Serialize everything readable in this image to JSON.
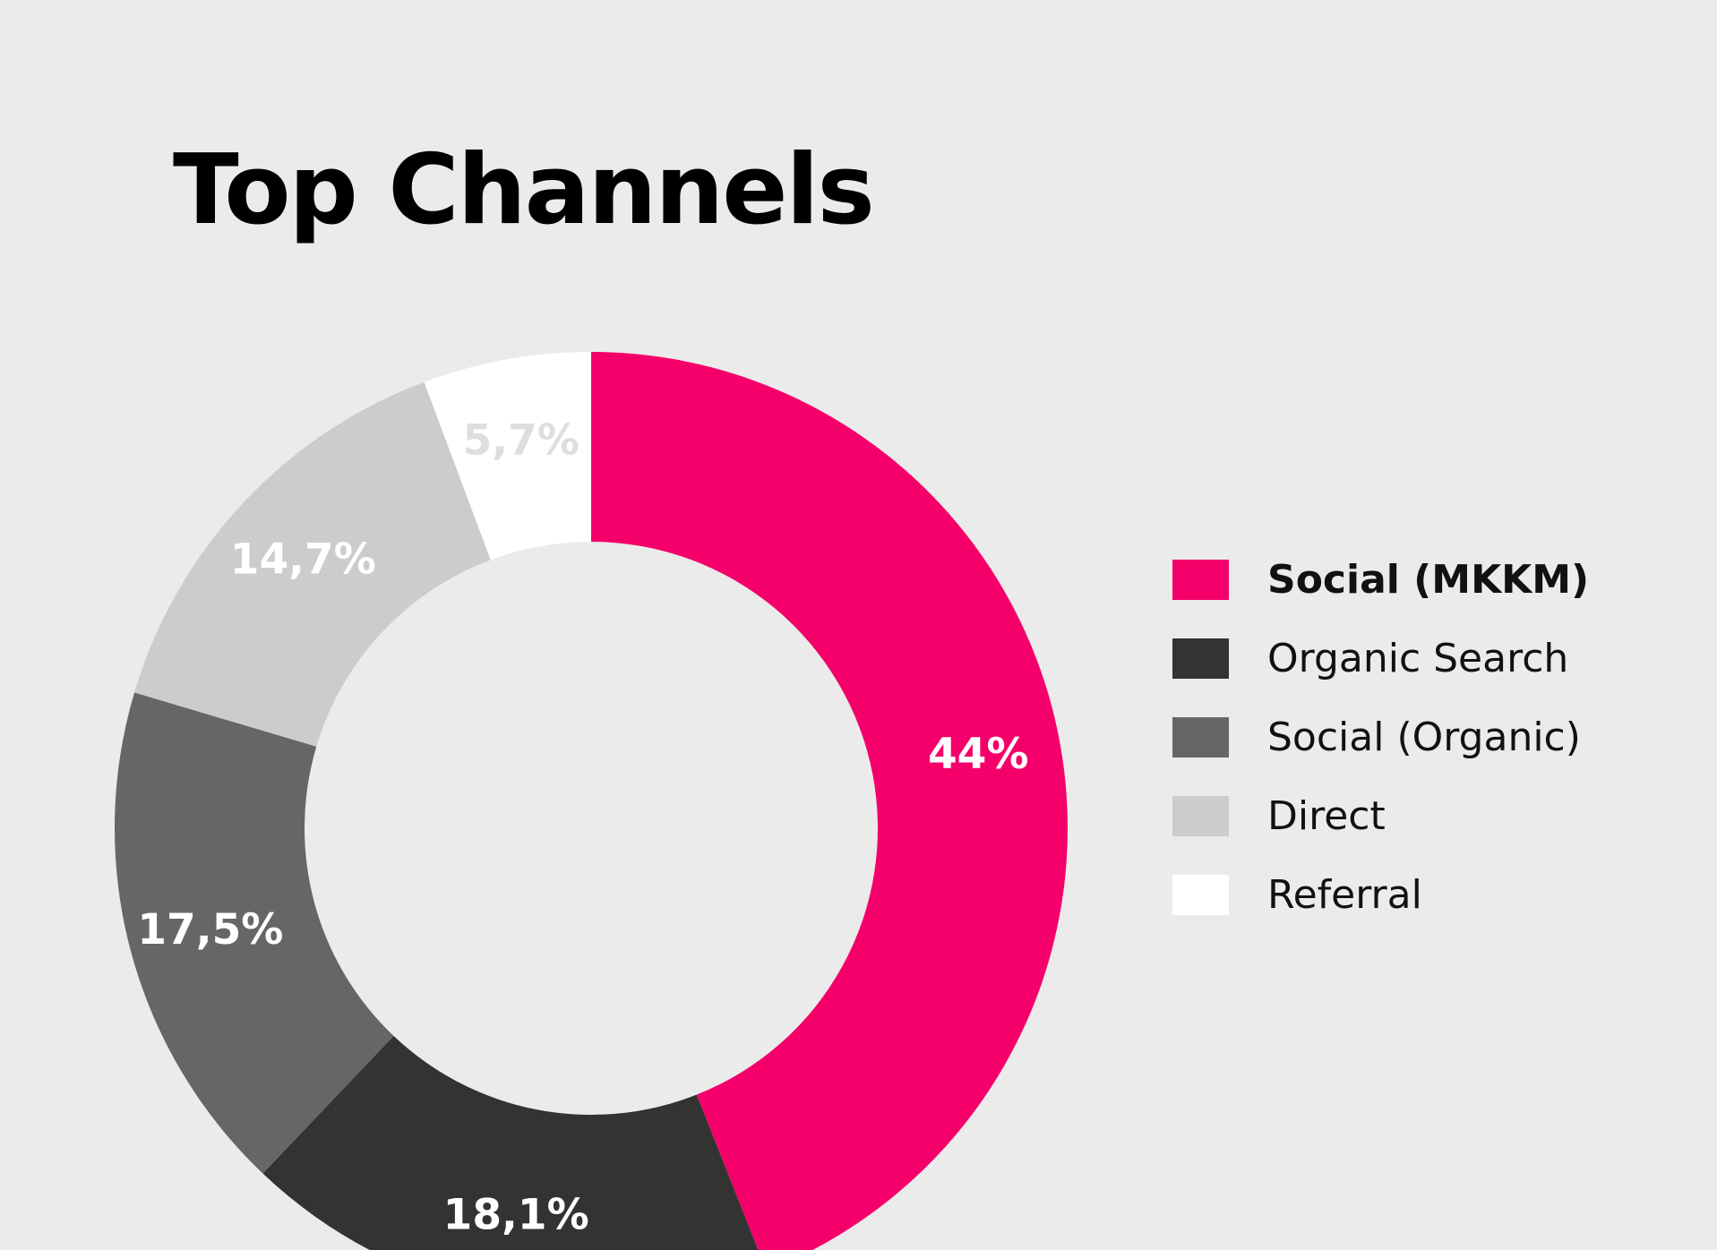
{
  "chart_data": {
    "type": "pie",
    "title": "Top Channels",
    "donut": true,
    "categories": [
      "Social (MKKM)",
      "Organic Search",
      "Social (Organic)",
      "Direct",
      "Referral"
    ],
    "values": [
      44,
      18.1,
      17.5,
      14.7,
      5.7
    ],
    "data_labels": [
      "44%",
      "18,1%",
      "17,5%",
      "14,7%",
      "5,7%"
    ],
    "colors": [
      "#f5006a",
      "#333333",
      "#666666",
      "#cccccc",
      "#ffffff"
    ],
    "label_colors": [
      "#ffffff",
      "#ffffff",
      "#ffffff",
      "#ffffff",
      "#dedede"
    ],
    "legend_position": "right",
    "legend_highlight_index": 0
  }
}
